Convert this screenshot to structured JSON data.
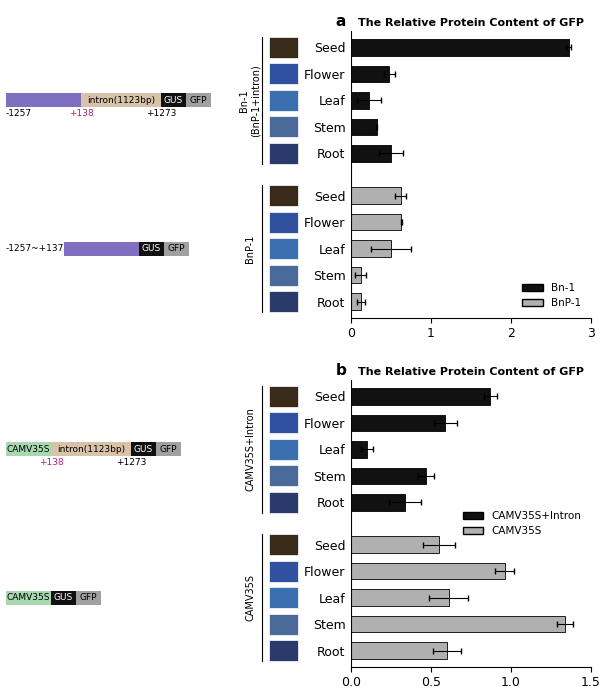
{
  "chart_data": [
    {
      "type": "bar",
      "orientation": "horizontal",
      "panel": "a",
      "title": "The Relative Protein Content of GFP",
      "categories": [
        "Seed",
        "Flower",
        "Leaf",
        "Stem",
        "Root"
      ],
      "series": [
        {
          "name": "Bn-1",
          "group_label": "Bn-1\n(BnP-1+intron)",
          "color": "#111111",
          "values": [
            2.72,
            0.48,
            0.22,
            0.32,
            0.5
          ],
          "errors": [
            0.03,
            0.07,
            0.15,
            0.01,
            0.15
          ]
        },
        {
          "name": "BnP-1",
          "group_label": "BnP-1",
          "color": "#b0b0b0",
          "values": [
            0.62,
            0.63,
            0.5,
            0.12,
            0.12
          ],
          "errors": [
            0.07,
            0.01,
            0.25,
            0.07,
            0.05
          ]
        }
      ],
      "xlim": [
        0,
        3
      ],
      "xticks": [
        0,
        1,
        2,
        3
      ],
      "legend": "lower right",
      "constructs": [
        {
          "segments": [
            null,
            "intron(1123bp)",
            "GUS",
            "GFP"
          ],
          "colors": [
            "#7f6fc0",
            "#d8c2a8",
            "#111111",
            "#a0a0a0"
          ],
          "marks": [
            {
              "text": "-1257",
              "boundary": 0
            },
            {
              "text": "+138",
              "boundary": 1
            },
            {
              "text": "+1273",
              "boundary": 2
            }
          ]
        },
        {
          "prefix": "-1257~+137",
          "segments": [
            null,
            "GUS",
            "GFP"
          ],
          "colors": [
            "#7f6fc0",
            "#111111",
            "#a0a0a0"
          ]
        }
      ]
    },
    {
      "type": "bar",
      "orientation": "horizontal",
      "panel": "b",
      "title": "The Relative Protein Content of GFP",
      "categories": [
        "Seed",
        "Flower",
        "Leaf",
        "Stem",
        "Root"
      ],
      "series": [
        {
          "name": "CAMV35S+Intron",
          "group_label": "CAMV35S+Intron",
          "color": "#111111",
          "values": [
            0.87,
            0.59,
            0.1,
            0.47,
            0.34
          ],
          "errors": [
            0.04,
            0.07,
            0.04,
            0.05,
            0.1
          ]
        },
        {
          "name": "CAMV35S",
          "group_label": "CAMV35S",
          "color": "#b0b0b0",
          "values": [
            0.55,
            0.96,
            0.61,
            1.34,
            0.6
          ],
          "errors": [
            0.1,
            0.06,
            0.12,
            0.05,
            0.09
          ]
        }
      ],
      "xlim": [
        0,
        1.5
      ],
      "xticks": [
        {
          "value": 0,
          "label": "0.0"
        },
        {
          "value": 0.5,
          "label": "0.5"
        },
        {
          "value": 1,
          "label": "1.0"
        },
        {
          "value": 1.5,
          "label": "1.5"
        }
      ],
      "legend": "center right",
      "constructs": [
        {
          "segments": [
            "CAMV35S",
            "intron(1123bp)",
            "GUS",
            "GFP"
          ],
          "colors": [
            "#a8d8b0",
            "#d8c2a8",
            "#111111",
            "#a0a0a0"
          ],
          "marks": [
            {
              "text": "+138",
              "boundary": 1
            },
            {
              "text": "+1273",
              "boundary": 2
            }
          ]
        },
        {
          "segments": [
            "CAMV35S",
            "GUS",
            "GFP"
          ],
          "colors": [
            "#a8d8b0",
            "#111111",
            "#a0a0a0"
          ]
        }
      ]
    }
  ]
}
